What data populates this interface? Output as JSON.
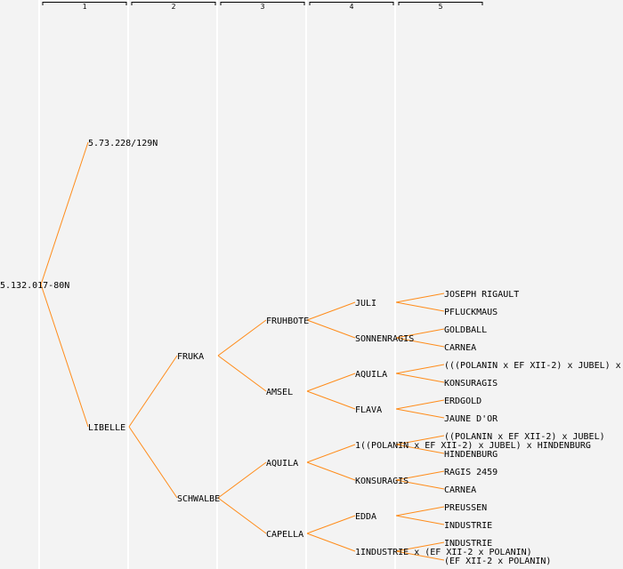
{
  "generations": [
    "1",
    "2",
    "3",
    "4",
    "5"
  ],
  "colors": {
    "edge": "#ff8c1a",
    "background": "#f3f3f3"
  },
  "tree": {
    "label": "5.132.017-80N",
    "children": [
      {
        "label": "5.73.228/129N"
      },
      {
        "label": "LIBELLE",
        "children": [
          {
            "label": "FRUKA",
            "children": [
              {
                "label": "FRUHBOTE",
                "children": [
                  {
                    "label": "JULI",
                    "children": [
                      {
                        "label": "JOSEPH RIGAULT"
                      },
                      {
                        "label": "PFLUCKMAUS"
                      }
                    ]
                  },
                  {
                    "label": "SONNENRAGIS",
                    "children": [
                      {
                        "label": "GOLDBALL"
                      },
                      {
                        "label": "CARNEA"
                      }
                    ]
                  }
                ]
              },
              {
                "label": "AMSEL",
                "children": [
                  {
                    "label": "AQUILA",
                    "children": [
                      {
                        "label": "(((POLANIN x EF XII-2) x JUBEL) x"
                      },
                      {
                        "label": "KONSURAGIS"
                      }
                    ]
                  },
                  {
                    "label": "FLAVA",
                    "children": [
                      {
                        "label": "ERDGOLD"
                      },
                      {
                        "label": "JAUNE D'OR"
                      }
                    ]
                  }
                ]
              }
            ]
          },
          {
            "label": "SCHWALBE",
            "children": [
              {
                "label": "AQUILA",
                "children": [
                  {
                    "label": "1((POLANIN x EF XII-2) x JUBEL) x HINDENBURG",
                    "children": [
                      {
                        "label": "((POLANIN x EF XII-2) x JUBEL)"
                      },
                      {
                        "label": "HINDENBURG"
                      }
                    ]
                  },
                  {
                    "label": "KONSURAGIS",
                    "children": [
                      {
                        "label": "RAGIS 2459"
                      },
                      {
                        "label": "CARNEA"
                      }
                    ]
                  }
                ]
              },
              {
                "label": "CAPELLA",
                "children": [
                  {
                    "label": "EDDA",
                    "children": [
                      {
                        "label": "PREUSSEN"
                      },
                      {
                        "label": "INDUSTRIE"
                      }
                    ]
                  },
                  {
                    "label": "1INDUSTRIE x (EF XII-2 x POLANIN)",
                    "children": [
                      {
                        "label": "INDUSTRIE"
                      },
                      {
                        "label": "(EF XII-2 x POLANIN)"
                      }
                    ]
                  }
                ]
              }
            ]
          }
        ]
      }
    ]
  }
}
